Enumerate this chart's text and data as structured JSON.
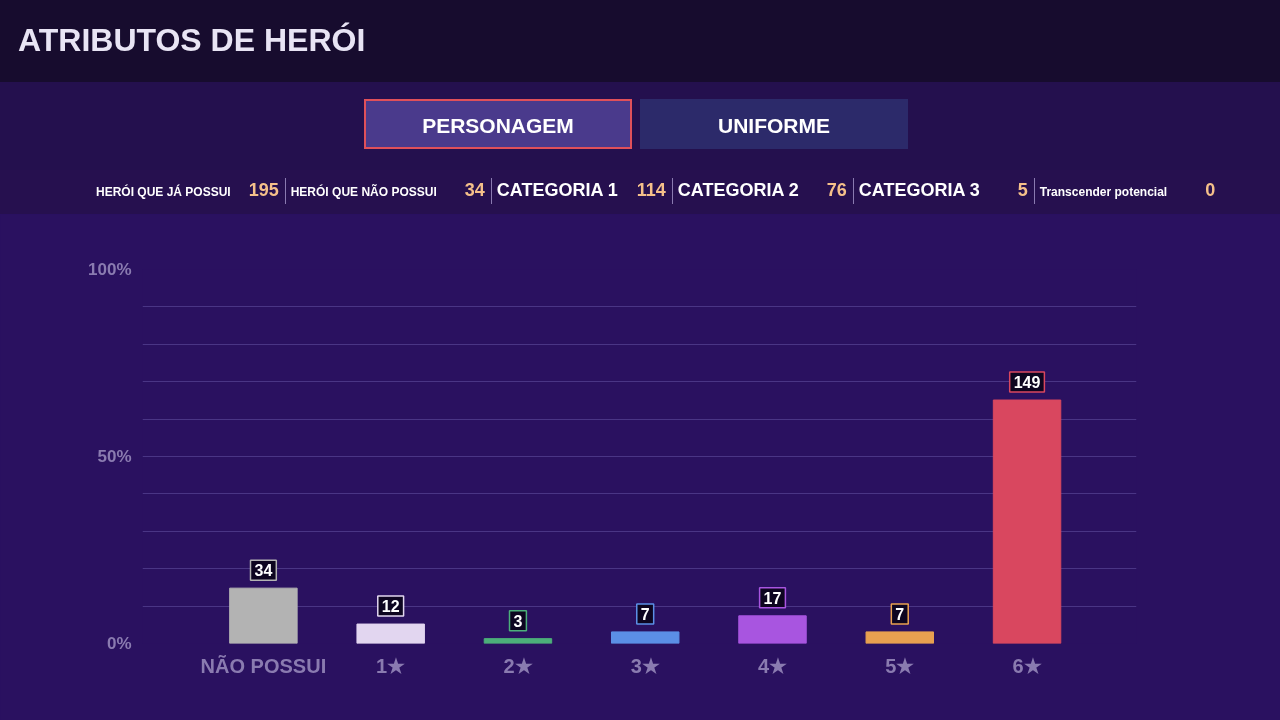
{
  "chart_data": {
    "type": "bar",
    "title": "ATRIBUTOS DE HERÓI",
    "categories": [
      "NÃO POSSUI",
      "1★",
      "2★",
      "3★",
      "4★",
      "5★",
      "6★"
    ],
    "values": [
      14.8,
      5.2,
      1.3,
      3.1,
      7.4,
      3.1,
      65.1
    ],
    "colors": [
      "#b3b3b3",
      "#e2d6f0",
      "#4caf7a",
      "#5b8fe6",
      "#a855e0",
      "#e8a050",
      "#d9475f"
    ],
    "ylim": [
      0,
      100
    ],
    "yticks": [
      {
        "value": 0,
        "label": "0%"
      },
      {
        "value": 10,
        "label": null
      },
      {
        "value": 20,
        "label": null
      },
      {
        "value": 30,
        "label": null
      },
      {
        "value": 40,
        "label": null
      },
      {
        "value": 50,
        "label": "50%"
      },
      {
        "value": 60,
        "label": null
      },
      {
        "value": 70,
        "label": null
      },
      {
        "value": 80,
        "label": null
      },
      {
        "value": 90,
        "label": null
      },
      {
        "value": 100,
        "label": "100%"
      }
    ],
    "grid": "y",
    "annotations": [
      "PERSONAGEM",
      "UNIFORME",
      "HERÓI QUE JÁ POSSUI",
      "195",
      "HERÓI QUE NÃO POSSUI",
      "34",
      "CATEGORIA 1",
      "114",
      "CATEGORIA 2",
      "76",
      "CATEGORIA 3",
      "5",
      "Transcender potencial",
      "0",
      {
        "text": "34",
        "x": "NÃO POSSUI",
        "y": 14.8
      },
      {
        "text": "12",
        "x": "1★",
        "y": 5.2
      },
      {
        "text": "3",
        "x": "2★",
        "y": 1.3
      },
      {
        "text": "7",
        "x": "3★",
        "y": 3.1
      },
      {
        "text": "17",
        "x": "4★",
        "y": 7.4
      },
      {
        "text": "7",
        "x": "5★",
        "y": 3.1
      },
      {
        "text": "149",
        "x": "6★",
        "y": 65.1
      }
    ]
  }
}
